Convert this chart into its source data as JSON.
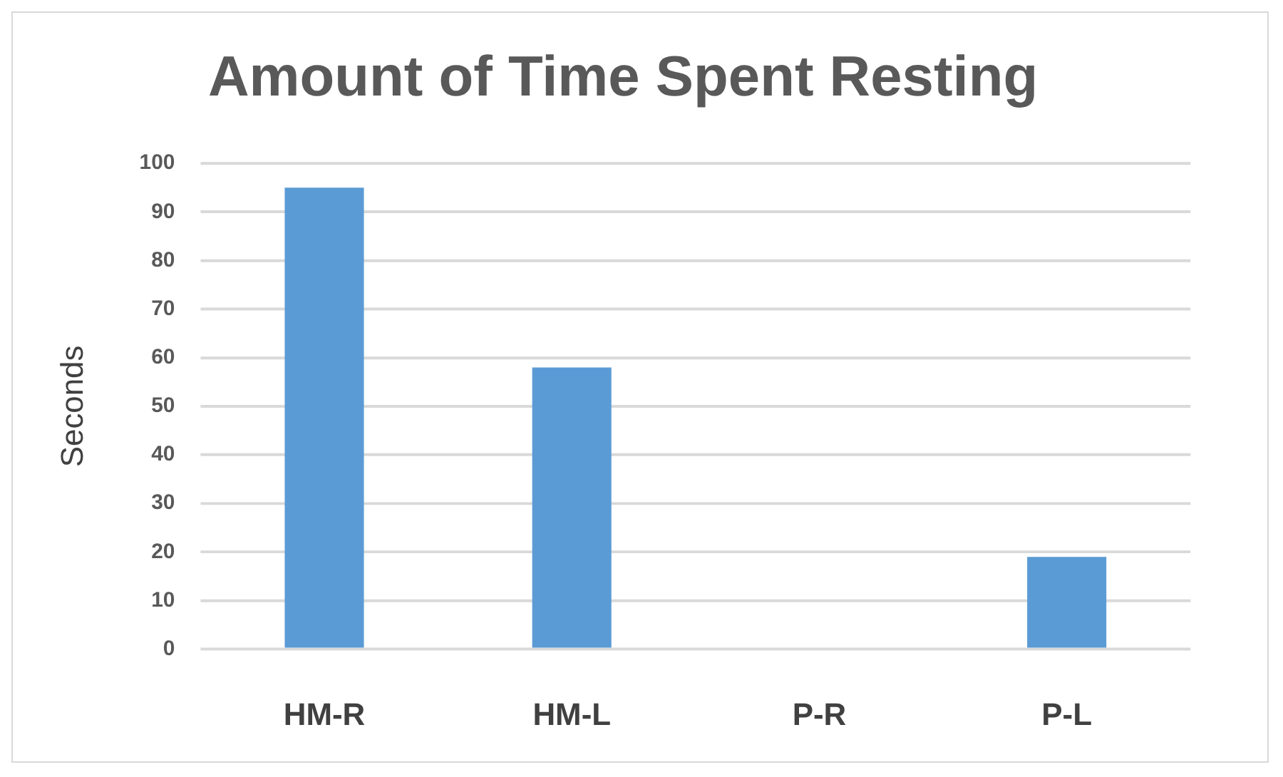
{
  "chart_data": {
    "type": "bar",
    "title": "Amount of Time Spent Resting",
    "ylabel": "Seconds",
    "categories": [
      "HM-R",
      "HM-L",
      "P-R",
      "P-L"
    ],
    "values": [
      95,
      58,
      0,
      19
    ],
    "color": "#5b9bd5",
    "ylim": [
      0,
      100
    ],
    "yticks": [
      0,
      10,
      20,
      30,
      40,
      50,
      60,
      70,
      80,
      90,
      100
    ],
    "grid": "y"
  }
}
